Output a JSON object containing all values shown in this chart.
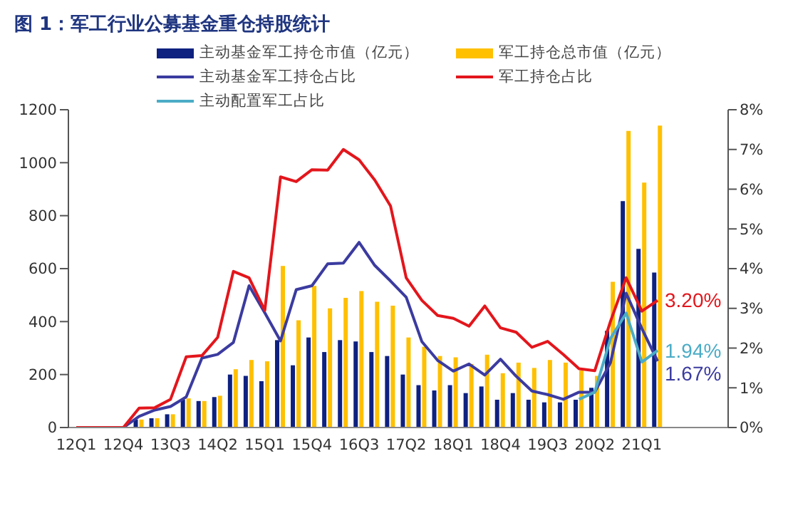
{
  "chart_data": {
    "type": "bar",
    "title": "图 1：军工行业公募基金重仓持股统计",
    "categories": [
      "12Q1",
      null,
      null,
      "12Q4",
      null,
      null,
      "13Q3",
      null,
      null,
      "14Q2",
      null,
      null,
      "15Q1",
      null,
      null,
      "15Q4",
      null,
      null,
      "16Q3",
      null,
      null,
      "17Q2",
      null,
      null,
      "18Q1",
      null,
      null,
      "18Q4",
      null,
      null,
      "19Q3",
      null,
      null,
      "20Q2",
      null,
      null,
      "21Q1",
      null
    ],
    "series": [
      {
        "name": "主动基金军工持仓市值（亿元）",
        "color": "#0e2180",
        "values": [
          null,
          null,
          null,
          null,
          30,
          35,
          50,
          105,
          100,
          115,
          200,
          195,
          175,
          330,
          235,
          340,
          285,
          330,
          325,
          285,
          270,
          200,
          160,
          140,
          160,
          130,
          155,
          105,
          130,
          105,
          95,
          95,
          105,
          150,
          365,
          855,
          675,
          585
        ]
      },
      {
        "name": "军工持仓总市值（亿元）",
        "color": "#ffc000",
        "values": [
          null,
          null,
          null,
          null,
          30,
          35,
          50,
          110,
          100,
          120,
          220,
          255,
          250,
          610,
          405,
          535,
          450,
          490,
          515,
          475,
          460,
          340,
          305,
          270,
          265,
          240,
          275,
          205,
          245,
          225,
          255,
          245,
          215,
          195,
          550,
          1120,
          925,
          1140
        ]
      },
      {
        "name": "主动基金军工持仓占比",
        "type": "line",
        "axis": "y2",
        "color": "#3b3ba0",
        "values": [
          null,
          null,
          null,
          0,
          0.28,
          0.44,
          0.53,
          0.77,
          1.75,
          1.84,
          2.14,
          3.57,
          2.89,
          2.18,
          3.47,
          3.57,
          4.12,
          4.14,
          4.66,
          4.08,
          3.69,
          3.28,
          2.16,
          1.69,
          1.42,
          1.6,
          1.32,
          1.72,
          1.29,
          0.92,
          0.83,
          0.71,
          0.89,
          0.89,
          1.63,
          3.38,
          2.49,
          1.67
        ],
        "value_labels": [
          null,
          null,
          null,
          null,
          null,
          null,
          null,
          null,
          null,
          null,
          null,
          null,
          null,
          null,
          null,
          null,
          null,
          null,
          null,
          null,
          null,
          null,
          null,
          null,
          null,
          null,
          null,
          null,
          null,
          null,
          null,
          null,
          null,
          null,
          null,
          null,
          null,
          "1.67%"
        ]
      },
      {
        "name": "军工持仓占比",
        "type": "line",
        "axis": "y2",
        "color": "#e3161c",
        "values": [
          0,
          0,
          0,
          0,
          0.49,
          0.5,
          0.71,
          1.78,
          1.81,
          2.27,
          3.93,
          3.77,
          2.95,
          6.31,
          6.19,
          6.49,
          6.48,
          7.0,
          6.74,
          6.23,
          5.58,
          3.77,
          3.2,
          2.82,
          2.75,
          2.55,
          3.06,
          2.51,
          2.4,
          2.02,
          2.17,
          1.84,
          1.48,
          1.43,
          2.67,
          3.77,
          2.93,
          3.2
        ],
        "value_labels": [
          null,
          null,
          null,
          null,
          null,
          null,
          null,
          null,
          null,
          null,
          null,
          null,
          null,
          null,
          null,
          null,
          null,
          null,
          null,
          null,
          null,
          null,
          null,
          null,
          null,
          null,
          null,
          null,
          null,
          null,
          null,
          null,
          null,
          null,
          null,
          null,
          null,
          "3.20%"
        ]
      },
      {
        "name": "主动配置军工占比",
        "type": "line",
        "axis": "y2",
        "color": "#4bacc6",
        "values": [
          null,
          null,
          null,
          null,
          null,
          null,
          null,
          null,
          null,
          null,
          null,
          null,
          null,
          null,
          null,
          null,
          null,
          null,
          null,
          null,
          null,
          null,
          null,
          null,
          null,
          null,
          null,
          null,
          null,
          null,
          null,
          null,
          0.71,
          0.89,
          2.24,
          2.88,
          1.65,
          1.94
        ],
        "value_labels": [
          null,
          null,
          null,
          null,
          null,
          null,
          null,
          null,
          null,
          null,
          null,
          null,
          null,
          null,
          null,
          null,
          null,
          null,
          null,
          null,
          null,
          null,
          null,
          null,
          null,
          null,
          null,
          null,
          null,
          null,
          null,
          null,
          null,
          null,
          null,
          null,
          null,
          "1.94%"
        ]
      }
    ],
    "ylim": [
      0,
      1200
    ],
    "yticks": [
      0,
      200,
      400,
      600,
      800,
      1000,
      1200
    ],
    "y2lim": [
      0,
      8
    ],
    "y2ticks": [
      {
        "value": 0,
        "label": "0%"
      },
      {
        "value": 1,
        "label": "1%"
      },
      {
        "value": 2,
        "label": "2%"
      },
      {
        "value": 3,
        "label": "3%"
      },
      {
        "value": 4,
        "label": "4%"
      },
      {
        "value": 5,
        "label": "5%"
      },
      {
        "value": 6,
        "label": "6%"
      },
      {
        "value": 7,
        "label": "7%"
      },
      {
        "value": 8,
        "label": "8%"
      }
    ],
    "legend": "top",
    "grid": false,
    "marker": "none",
    "line_style": "solid"
  }
}
